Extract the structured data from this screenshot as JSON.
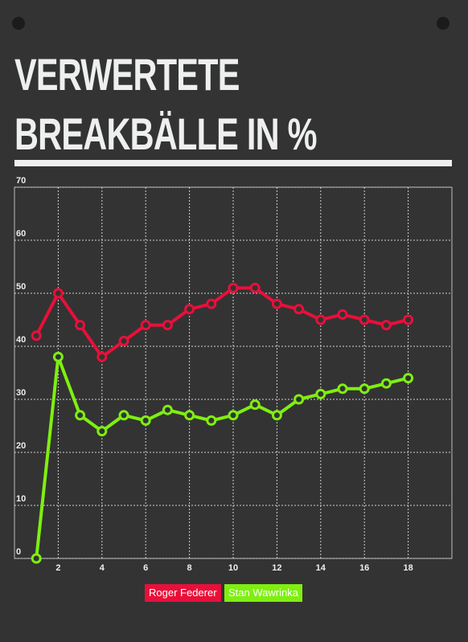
{
  "chart_data": {
    "type": "line",
    "title": "VERWERTETE BREAKBÄLLE IN %",
    "x": [
      1,
      2,
      3,
      4,
      5,
      6,
      7,
      8,
      9,
      10,
      11,
      12,
      13,
      14,
      15,
      16,
      17,
      18
    ],
    "series": [
      {
        "name": "Roger Federer",
        "color": "#e8103a",
        "values": [
          42,
          50,
          44,
          38,
          41,
          44,
          44,
          47,
          48,
          51,
          51,
          48,
          47,
          45,
          46,
          45,
          44,
          45
        ]
      },
      {
        "name": "Stan Wawrinka",
        "color": "#7fef10",
        "values": [
          0,
          38,
          27,
          24,
          27,
          26,
          28,
          27,
          26,
          27,
          29,
          27,
          30,
          31,
          32,
          32,
          33,
          34
        ]
      }
    ],
    "xlim": [
      0,
      20
    ],
    "ylim": [
      0,
      70
    ],
    "xticks": [
      2,
      4,
      6,
      8,
      10,
      12,
      14,
      16,
      18
    ],
    "yticks": [
      0,
      10,
      20,
      30,
      40,
      50,
      60,
      70
    ],
    "grid": true
  }
}
